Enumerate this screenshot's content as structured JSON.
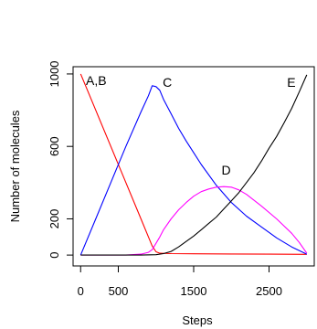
{
  "chart_data": {
    "type": "line",
    "title": "",
    "xlabel": "Steps",
    "ylabel": "Number of molecules",
    "xlim": [
      -100,
      3100
    ],
    "ylim": [
      -60,
      1040
    ],
    "x_ticks": [
      0,
      500,
      1500,
      2500
    ],
    "y_ticks": [
      0,
      200,
      600,
      1000
    ],
    "grid": false,
    "legend": "none",
    "series": [
      {
        "name": "A,B",
        "color": "#ff0000",
        "x": [
          0,
          200,
          400,
          600,
          800,
          900,
          950,
          1000,
          1050,
          1200,
          1500,
          2000,
          2500,
          3000
        ],
        "y": [
          1000,
          800,
          600,
          400,
          200,
          100,
          50,
          18,
          10,
          8,
          7,
          6,
          5,
          4
        ]
      },
      {
        "name": "C",
        "color": "#0000ff",
        "x": [
          0,
          200,
          400,
          600,
          800,
          900,
          950,
          1000,
          1050,
          1100,
          1200,
          1300,
          1400,
          1500,
          1600,
          1800,
          2000,
          2200,
          2400,
          2600,
          2800,
          3000
        ],
        "y": [
          0,
          200,
          400,
          600,
          790,
          880,
          935,
          930,
          910,
          860,
          780,
          700,
          630,
          565,
          500,
          385,
          290,
          215,
          155,
          95,
          45,
          5
        ]
      },
      {
        "name": "D",
        "color": "#ff00ff",
        "x": [
          0,
          600,
          800,
          900,
          950,
          1000,
          1050,
          1100,
          1200,
          1300,
          1400,
          1500,
          1600,
          1700,
          1800,
          1900,
          2000,
          2100,
          2200,
          2400,
          2600,
          2800,
          2900,
          3000
        ],
        "y": [
          0,
          0,
          5,
          15,
          30,
          65,
          100,
          140,
          200,
          250,
          290,
          325,
          350,
          365,
          375,
          378,
          375,
          360,
          335,
          270,
          200,
          120,
          70,
          10
        ]
      },
      {
        "name": "E",
        "color": "#000000",
        "x": [
          0,
          800,
          1000,
          1100,
          1200,
          1300,
          1400,
          1500,
          1600,
          1700,
          1800,
          1900,
          2000,
          2100,
          2200,
          2300,
          2400,
          2500,
          2600,
          2700,
          2800,
          2900,
          3000
        ],
        "y": [
          0,
          0,
          2,
          8,
          20,
          45,
          75,
          105,
          140,
          175,
          210,
          255,
          300,
          345,
          400,
          455,
          520,
          590,
          655,
          730,
          810,
          900,
          995
        ]
      }
    ],
    "curve_labels": [
      {
        "text": "A,B",
        "x": 70,
        "y": 965
      },
      {
        "text": "C",
        "x": 1090,
        "y": 955
      },
      {
        "text": "D",
        "x": 1870,
        "y": 470
      },
      {
        "text": "E",
        "x": 2740,
        "y": 955
      }
    ]
  }
}
